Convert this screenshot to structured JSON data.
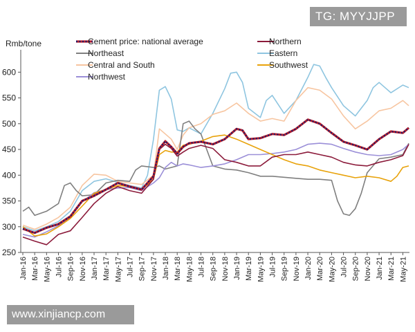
{
  "watermarks": {
    "top": "TG: MYYJJPP",
    "bottom": "www.xinjiancp.com"
  },
  "chart_data": {
    "type": "line",
    "ylabel": "Rmb/tone",
    "ylim": [
      250,
      630
    ],
    "yticks": [
      250,
      300,
      350,
      400,
      450,
      500,
      550,
      600
    ],
    "xlim": [
      0,
      65
    ],
    "xtick_labels": [
      "Jan-16",
      "Mar-16",
      "May-16",
      "Jul-16",
      "Sep-16",
      "Nov-16",
      "Jan-17",
      "Mar-17",
      "May-17",
      "Jul-17",
      "Sep-17",
      "Nov-17",
      "Jan-18",
      "Mar-18",
      "May-18",
      "Jul-18",
      "Sep-18",
      "Nov-18",
      "Jan-19",
      "Mar-19",
      "May-19",
      "Jul-19",
      "Sep-19",
      "Nov-19",
      "Jan-20",
      "Mar-20",
      "May-20",
      "Jul-20",
      "Sep-20",
      "Nov-20",
      "Jan-21",
      "Mar-21",
      "May-21"
    ],
    "grid": false,
    "legend_position": "top",
    "series": [
      {
        "name": "Cement price: national average",
        "color": "#1a1a6e",
        "style": "dotted",
        "points": [
          [
            0,
            296
          ],
          [
            2,
            288
          ],
          [
            4,
            298
          ],
          [
            6,
            305
          ],
          [
            8,
            320
          ],
          [
            10,
            350
          ],
          [
            12,
            360
          ],
          [
            14,
            372
          ],
          [
            16,
            385
          ],
          [
            18,
            378
          ],
          [
            20,
            372
          ],
          [
            22,
            398
          ],
          [
            23,
            452
          ],
          [
            24,
            466
          ],
          [
            25,
            455
          ],
          [
            26,
            442
          ],
          [
            27,
            455
          ],
          [
            28,
            462
          ],
          [
            30,
            465
          ],
          [
            32,
            460
          ],
          [
            34,
            470
          ],
          [
            35,
            480
          ],
          [
            36,
            490
          ],
          [
            37,
            487
          ],
          [
            38,
            470
          ],
          [
            40,
            472
          ],
          [
            42,
            480
          ],
          [
            44,
            478
          ],
          [
            46,
            490
          ],
          [
            48,
            508
          ],
          [
            50,
            500
          ],
          [
            52,
            482
          ],
          [
            54,
            465
          ],
          [
            56,
            458
          ],
          [
            58,
            450
          ],
          [
            60,
            470
          ],
          [
            62,
            485
          ],
          [
            64,
            482
          ],
          [
            65,
            492
          ]
        ]
      },
      {
        "name": "Northern",
        "color": "#8b1a3a",
        "style": "solid",
        "points": [
          [
            0,
            280
          ],
          [
            2,
            272
          ],
          [
            4,
            265
          ],
          [
            6,
            285
          ],
          [
            8,
            292
          ],
          [
            10,
            318
          ],
          [
            12,
            345
          ],
          [
            14,
            365
          ],
          [
            16,
            378
          ],
          [
            18,
            370
          ],
          [
            20,
            365
          ],
          [
            22,
            392
          ],
          [
            23,
            450
          ],
          [
            24,
            460
          ],
          [
            25,
            452
          ],
          [
            26,
            437
          ],
          [
            27,
            445
          ],
          [
            28,
            452
          ],
          [
            30,
            458
          ],
          [
            32,
            452
          ],
          [
            34,
            430
          ],
          [
            36,
            425
          ],
          [
            38,
            418
          ],
          [
            40,
            418
          ],
          [
            42,
            435
          ],
          [
            44,
            440
          ],
          [
            46,
            440
          ],
          [
            48,
            445
          ],
          [
            50,
            440
          ],
          [
            52,
            435
          ],
          [
            54,
            425
          ],
          [
            56,
            420
          ],
          [
            58,
            418
          ],
          [
            60,
            425
          ],
          [
            62,
            430
          ],
          [
            64,
            438
          ],
          [
            65,
            460
          ]
        ]
      },
      {
        "name": "Northeast",
        "color": "#7f7f7f",
        "style": "solid",
        "points": [
          [
            0,
            330
          ],
          [
            1,
            338
          ],
          [
            2,
            322
          ],
          [
            4,
            330
          ],
          [
            6,
            345
          ],
          [
            7,
            380
          ],
          [
            8,
            385
          ],
          [
            9,
            370
          ],
          [
            10,
            360
          ],
          [
            12,
            362
          ],
          [
            14,
            385
          ],
          [
            16,
            390
          ],
          [
            18,
            388
          ],
          [
            19,
            410
          ],
          [
            20,
            418
          ],
          [
            22,
            415
          ],
          [
            23,
            418
          ],
          [
            24,
            412
          ],
          [
            25,
            415
          ],
          [
            26,
            418
          ],
          [
            27,
            500
          ],
          [
            28,
            505
          ],
          [
            29,
            490
          ],
          [
            30,
            480
          ],
          [
            32,
            418
          ],
          [
            34,
            412
          ],
          [
            36,
            410
          ],
          [
            38,
            405
          ],
          [
            40,
            398
          ],
          [
            42,
            398
          ],
          [
            44,
            396
          ],
          [
            46,
            394
          ],
          [
            48,
            392
          ],
          [
            50,
            392
          ],
          [
            52,
            390
          ],
          [
            53,
            350
          ],
          [
            54,
            325
          ],
          [
            55,
            322
          ],
          [
            56,
            335
          ],
          [
            57,
            365
          ],
          [
            58,
            405
          ],
          [
            60,
            432
          ],
          [
            62,
            435
          ],
          [
            64,
            440
          ],
          [
            65,
            462
          ]
        ]
      },
      {
        "name": "Eastern",
        "color": "#8ec5e0",
        "style": "solid",
        "points": [
          [
            0,
            300
          ],
          [
            2,
            292
          ],
          [
            4,
            300
          ],
          [
            6,
            310
          ],
          [
            8,
            330
          ],
          [
            10,
            370
          ],
          [
            12,
            388
          ],
          [
            14,
            393
          ],
          [
            16,
            386
          ],
          [
            18,
            380
          ],
          [
            20,
            375
          ],
          [
            21,
            400
          ],
          [
            22,
            470
          ],
          [
            23,
            565
          ],
          [
            24,
            572
          ],
          [
            25,
            548
          ],
          [
            26,
            488
          ],
          [
            27,
            485
          ],
          [
            28,
            492
          ],
          [
            30,
            480
          ],
          [
            32,
            520
          ],
          [
            34,
            568
          ],
          [
            35,
            598
          ],
          [
            36,
            600
          ],
          [
            37,
            580
          ],
          [
            38,
            530
          ],
          [
            40,
            512
          ],
          [
            41,
            545
          ],
          [
            42,
            555
          ],
          [
            44,
            520
          ],
          [
            46,
            545
          ],
          [
            48,
            590
          ],
          [
            49,
            615
          ],
          [
            50,
            612
          ],
          [
            51,
            590
          ],
          [
            52,
            570
          ],
          [
            54,
            535
          ],
          [
            56,
            515
          ],
          [
            58,
            545
          ],
          [
            59,
            570
          ],
          [
            60,
            580
          ],
          [
            61,
            570
          ],
          [
            62,
            560
          ],
          [
            64,
            575
          ],
          [
            65,
            570
          ]
        ]
      },
      {
        "name": "Central and South",
        "color": "#f7c5a0",
        "style": "solid",
        "points": [
          [
            0,
            303
          ],
          [
            2,
            295
          ],
          [
            4,
            305
          ],
          [
            6,
            318
          ],
          [
            8,
            338
          ],
          [
            10,
            380
          ],
          [
            12,
            402
          ],
          [
            14,
            400
          ],
          [
            16,
            388
          ],
          [
            18,
            385
          ],
          [
            20,
            382
          ],
          [
            22,
            400
          ],
          [
            23,
            490
          ],
          [
            24,
            480
          ],
          [
            25,
            470
          ],
          [
            26,
            450
          ],
          [
            27,
            478
          ],
          [
            28,
            492
          ],
          [
            30,
            500
          ],
          [
            32,
            518
          ],
          [
            34,
            525
          ],
          [
            36,
            540
          ],
          [
            38,
            520
          ],
          [
            40,
            505
          ],
          [
            42,
            510
          ],
          [
            44,
            505
          ],
          [
            46,
            545
          ],
          [
            48,
            570
          ],
          [
            50,
            565
          ],
          [
            52,
            548
          ],
          [
            54,
            515
          ],
          [
            56,
            490
          ],
          [
            58,
            505
          ],
          [
            60,
            525
          ],
          [
            62,
            530
          ],
          [
            64,
            545
          ],
          [
            65,
            535
          ]
        ]
      },
      {
        "name": "Southwest",
        "color": "#e8a20a",
        "style": "solid",
        "points": [
          [
            0,
            300
          ],
          [
            2,
            282
          ],
          [
            4,
            286
          ],
          [
            6,
            300
          ],
          [
            8,
            316
          ],
          [
            10,
            340
          ],
          [
            12,
            365
          ],
          [
            14,
            372
          ],
          [
            16,
            380
          ],
          [
            18,
            378
          ],
          [
            20,
            372
          ],
          [
            22,
            392
          ],
          [
            23,
            440
          ],
          [
            24,
            448
          ],
          [
            25,
            445
          ],
          [
            26,
            445
          ],
          [
            27,
            458
          ],
          [
            28,
            460
          ],
          [
            30,
            466
          ],
          [
            32,
            475
          ],
          [
            34,
            478
          ],
          [
            36,
            470
          ],
          [
            38,
            460
          ],
          [
            40,
            450
          ],
          [
            42,
            440
          ],
          [
            44,
            430
          ],
          [
            46,
            422
          ],
          [
            48,
            418
          ],
          [
            50,
            410
          ],
          [
            52,
            405
          ],
          [
            54,
            400
          ],
          [
            56,
            395
          ],
          [
            58,
            398
          ],
          [
            60,
            395
          ],
          [
            62,
            388
          ],
          [
            63,
            398
          ],
          [
            64,
            415
          ],
          [
            65,
            418
          ]
        ]
      },
      {
        "name": "Northwest",
        "color": "#9b8fd8",
        "style": "solid",
        "points": [
          [
            0,
            285
          ],
          [
            2,
            280
          ],
          [
            4,
            290
          ],
          [
            6,
            302
          ],
          [
            8,
            318
          ],
          [
            10,
            348
          ],
          [
            12,
            366
          ],
          [
            14,
            372
          ],
          [
            16,
            375
          ],
          [
            18,
            376
          ],
          [
            20,
            370
          ],
          [
            22,
            385
          ],
          [
            23,
            395
          ],
          [
            24,
            415
          ],
          [
            25,
            425
          ],
          [
            26,
            418
          ],
          [
            27,
            422
          ],
          [
            28,
            420
          ],
          [
            30,
            415
          ],
          [
            32,
            418
          ],
          [
            34,
            422
          ],
          [
            36,
            430
          ],
          [
            38,
            440
          ],
          [
            40,
            440
          ],
          [
            42,
            442
          ],
          [
            44,
            445
          ],
          [
            46,
            450
          ],
          [
            48,
            460
          ],
          [
            50,
            462
          ],
          [
            52,
            460
          ],
          [
            54,
            452
          ],
          [
            56,
            445
          ],
          [
            58,
            440
          ],
          [
            60,
            438
          ],
          [
            62,
            440
          ],
          [
            64,
            450
          ],
          [
            65,
            460
          ]
        ]
      }
    ]
  }
}
